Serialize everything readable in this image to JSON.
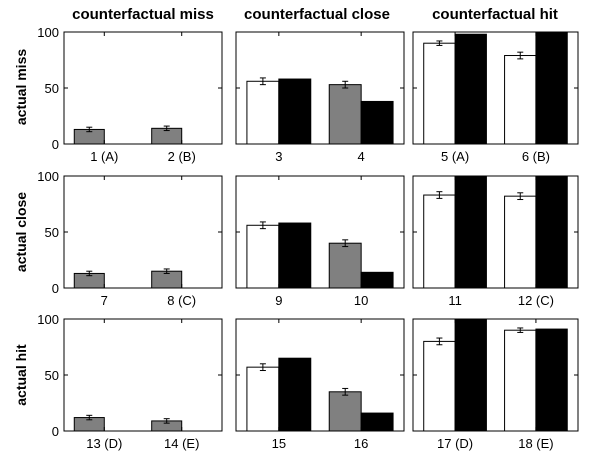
{
  "column_titles": [
    "counterfactual miss",
    "counterfactual close",
    "counterfactual hit"
  ],
  "row_titles": [
    "actual miss",
    "actual close",
    "actual hit"
  ],
  "y_ticks": [
    "0",
    "50",
    "100"
  ],
  "colors": {
    "empirical_bar": "#ffffff",
    "model_bar": "#000000",
    "gray_bar": "#808080"
  },
  "chart_data": [
    {
      "type": "bar",
      "row": "actual miss",
      "column": "counterfactual miss",
      "ylim": [
        0,
        100
      ],
      "categories": [
        "1 (A)",
        "2 (B)"
      ],
      "bars": [
        [
          {
            "v": 13,
            "err": 2,
            "color": "gray"
          }
        ],
        [
          {
            "v": 14,
            "err": 2,
            "color": "gray"
          }
        ]
      ]
    },
    {
      "type": "bar",
      "row": "actual miss",
      "column": "counterfactual close",
      "ylim": [
        0,
        100
      ],
      "categories": [
        "3",
        "4"
      ],
      "bars": [
        [
          {
            "v": 56,
            "err": 3,
            "color": "white"
          },
          {
            "v": 58,
            "color": "black"
          }
        ],
        [
          {
            "v": 53,
            "err": 3,
            "color": "gray"
          },
          {
            "v": 38,
            "color": "black"
          }
        ]
      ]
    },
    {
      "type": "bar",
      "row": "actual miss",
      "column": "counterfactual hit",
      "ylim": [
        0,
        100
      ],
      "categories": [
        "5 (A)",
        "6 (B)"
      ],
      "bars": [
        [
          {
            "v": 90,
            "err": 2,
            "color": "white"
          },
          {
            "v": 98,
            "color": "black"
          }
        ],
        [
          {
            "v": 79,
            "err": 3,
            "color": "white"
          },
          {
            "v": 100,
            "color": "black"
          }
        ]
      ]
    },
    {
      "type": "bar",
      "row": "actual close",
      "column": "counterfactual miss",
      "ylim": [
        0,
        100
      ],
      "categories": [
        "7",
        "8 (C)"
      ],
      "bars": [
        [
          {
            "v": 13,
            "err": 2,
            "color": "gray"
          },
          {
            "v": 0,
            "color": "black"
          }
        ],
        [
          {
            "v": 15,
            "err": 2,
            "color": "gray"
          },
          {
            "v": 0,
            "color": "black"
          }
        ]
      ]
    },
    {
      "type": "bar",
      "row": "actual close",
      "column": "counterfactual close",
      "ylim": [
        0,
        100
      ],
      "categories": [
        "9",
        "10"
      ],
      "bars": [
        [
          {
            "v": 56,
            "err": 3,
            "color": "white"
          },
          {
            "v": 58,
            "color": "black"
          }
        ],
        [
          {
            "v": 40,
            "err": 3,
            "color": "gray"
          },
          {
            "v": 14,
            "color": "black"
          }
        ]
      ]
    },
    {
      "type": "bar",
      "row": "actual close",
      "column": "counterfactual hit",
      "ylim": [
        0,
        100
      ],
      "categories": [
        "11",
        "12 (C)"
      ],
      "bars": [
        [
          {
            "v": 83,
            "err": 3,
            "color": "white"
          },
          {
            "v": 100,
            "color": "black"
          }
        ],
        [
          {
            "v": 82,
            "err": 3,
            "color": "white"
          },
          {
            "v": 100,
            "color": "black"
          }
        ]
      ]
    },
    {
      "type": "bar",
      "row": "actual hit",
      "column": "counterfactual miss",
      "ylim": [
        0,
        100
      ],
      "categories": [
        "13 (D)",
        "14 (E)"
      ],
      "bars": [
        [
          {
            "v": 12,
            "err": 2,
            "color": "gray"
          },
          {
            "v": 0,
            "color": "black"
          }
        ],
        [
          {
            "v": 9,
            "err": 2,
            "color": "gray"
          },
          {
            "v": 0,
            "color": "black"
          }
        ]
      ]
    },
    {
      "type": "bar",
      "row": "actual hit",
      "column": "counterfactual close",
      "ylim": [
        0,
        100
      ],
      "categories": [
        "15",
        "16"
      ],
      "bars": [
        [
          {
            "v": 57,
            "err": 3,
            "color": "white"
          },
          {
            "v": 65,
            "color": "black"
          }
        ],
        [
          {
            "v": 35,
            "err": 3,
            "color": "gray"
          },
          {
            "v": 16,
            "color": "black"
          }
        ]
      ]
    },
    {
      "type": "bar",
      "row": "actual hit",
      "column": "counterfactual hit",
      "ylim": [
        0,
        100
      ],
      "categories": [
        "17 (D)",
        "18 (E)"
      ],
      "bars": [
        [
          {
            "v": 80,
            "err": 3,
            "color": "white"
          },
          {
            "v": 100,
            "color": "black"
          }
        ],
        [
          {
            "v": 90,
            "err": 2,
            "color": "white"
          },
          {
            "v": 91,
            "color": "black"
          }
        ]
      ]
    }
  ]
}
